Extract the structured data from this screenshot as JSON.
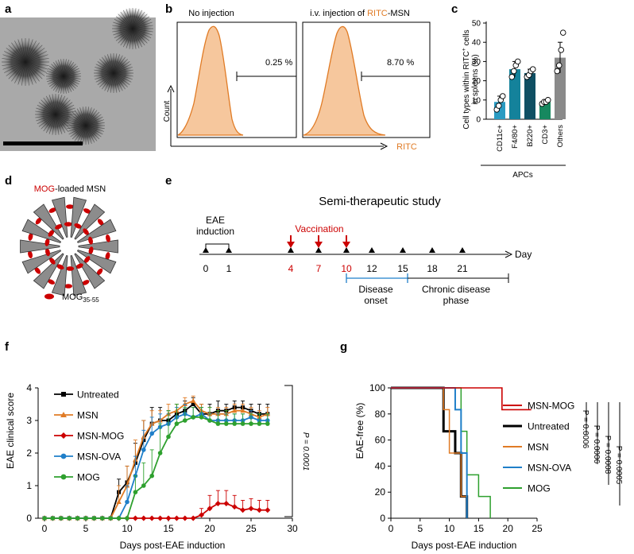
{
  "figure": {
    "panel_letters": [
      "a",
      "b",
      "c",
      "d",
      "e",
      "f",
      "g"
    ],
    "colors": {
      "black": "#000000",
      "red": "#cc0000",
      "orange": "#e07b25",
      "blue": "#1f7fc9",
      "green": "#2ea02e",
      "fill_orange": "#f6c79d",
      "cd11c": "#2a9bc2",
      "f480": "#14829b",
      "b220": "#0f4f63",
      "cd3": "#17885f",
      "others": "#8a8a8a",
      "grey_rod": "#8c8c8c"
    }
  },
  "panel_b": {
    "left_title": "No injection",
    "right_title_pre": "i.v. injection of ",
    "right_title_highlight": "RITC",
    "right_title_post": "-MSN",
    "left_pct": "0.25 %",
    "right_pct": "8.70 %",
    "ylabel": "Count",
    "xlabel": "RITC"
  },
  "panel_d": {
    "title_highlight": "MOG",
    "title_rest": "-loaded MSN",
    "legend_main": "MOG",
    "legend_sub": "35-55"
  },
  "panel_e": {
    "title": "Semi-therapeutic study",
    "induction_line1": "EAE",
    "induction_line2": "induction",
    "vaccination": "Vaccination",
    "day_label": "Day",
    "days": [
      {
        "label": "0",
        "red": false
      },
      {
        "label": "1",
        "red": false
      },
      {
        "label": "4",
        "red": true
      },
      {
        "label": "7",
        "red": true
      },
      {
        "label": "10",
        "red": true
      },
      {
        "label": "12",
        "red": false
      },
      {
        "label": "15",
        "red": false
      },
      {
        "label": "18",
        "red": false
      },
      {
        "label": "21",
        "red": false
      }
    ],
    "onset_line1": "Disease",
    "onset_line2": "onset",
    "chronic_line1": "Chronic disease",
    "chronic_line2": "phase"
  },
  "chart_data": [
    {
      "id": "c",
      "type": "bar",
      "ylabel": "Cell types within RITC+ cells in spleens (%)",
      "ylabel_line1_pre": "Cell types within RITC",
      "ylabel_line1_sup": "+",
      "ylabel_line1_post": " cells",
      "ylabel_line2": "in spleens (%)",
      "ylim": [
        0,
        50
      ],
      "yticks": [
        0,
        10,
        20,
        30,
        40,
        50
      ],
      "categories": [
        "CD11c+",
        "F4/80+",
        "B220+",
        "CD3+",
        "Others"
      ],
      "values": [
        9,
        26,
        24,
        9,
        32
      ],
      "errors": [
        3,
        4,
        2,
        1,
        8
      ],
      "points": [
        [
          5,
          7,
          10,
          12
        ],
        [
          22,
          25,
          28,
          30
        ],
        [
          22,
          23,
          25,
          26
        ],
        [
          8,
          9,
          9,
          10
        ],
        [
          25,
          28,
          36,
          45
        ]
      ],
      "group_label": "APCs"
    },
    {
      "id": "f",
      "type": "line",
      "xlabel": "Days post-EAE induction",
      "ylabel": "EAE clinical score",
      "xlim": [
        0,
        30
      ],
      "ylim": [
        0,
        4
      ],
      "xticks": [
        0,
        5,
        10,
        15,
        20,
        25,
        30
      ],
      "yticks": [
        0,
        1,
        2,
        3,
        4
      ],
      "pvalue": "P = 0.0001",
      "x": [
        0,
        1,
        2,
        3,
        4,
        5,
        6,
        7,
        8,
        9,
        10,
        11,
        12,
        13,
        14,
        15,
        16,
        17,
        18,
        19,
        20,
        21,
        22,
        23,
        24,
        25,
        26,
        27
      ],
      "series": [
        {
          "name": "Untreated",
          "color": "#000000",
          "marker": "square",
          "values": [
            0,
            0,
            0,
            0,
            0,
            0,
            0,
            0,
            0,
            0.8,
            1.1,
            1.7,
            2.4,
            2.9,
            3.0,
            3.0,
            3.2,
            3.3,
            3.5,
            3.2,
            3.2,
            3.3,
            3.3,
            3.4,
            3.4,
            3.3,
            3.2,
            3.2
          ],
          "errors": [
            0,
            0,
            0,
            0,
            0,
            0,
            0,
            0,
            0,
            0.4,
            0.5,
            0.6,
            0.6,
            0.5,
            0.4,
            0.3,
            0.3,
            0.3,
            0.2,
            0.3,
            0.3,
            0.3,
            0.2,
            0.2,
            0.2,
            0.2,
            0.3,
            0.3
          ]
        },
        {
          "name": "MSN",
          "color": "#e07b25",
          "marker": "triangle",
          "values": [
            0,
            0,
            0,
            0,
            0,
            0,
            0,
            0,
            0,
            0.5,
            1.0,
            1.8,
            2.5,
            2.9,
            3.0,
            3.2,
            3.3,
            3.5,
            3.6,
            3.3,
            3.2,
            3.2,
            3.2,
            3.3,
            3.3,
            3.2,
            3.1,
            3.2
          ],
          "errors": [
            0,
            0,
            0,
            0,
            0,
            0,
            0,
            0,
            0,
            0.5,
            0.6,
            0.6,
            0.5,
            0.4,
            0.3,
            0.3,
            0.2,
            0.2,
            0.15,
            0.2,
            0.2,
            0.2,
            0.2,
            0.2,
            0.2,
            0.2,
            0.2,
            0.2
          ]
        },
        {
          "name": "MSN-MOG",
          "color": "#cc0000",
          "marker": "diamond",
          "values": [
            0,
            0,
            0,
            0,
            0,
            0,
            0,
            0,
            0,
            0,
            0,
            0,
            0,
            0,
            0,
            0,
            0,
            0,
            0,
            0.1,
            0.3,
            0.45,
            0.45,
            0.35,
            0.25,
            0.3,
            0.25,
            0.25
          ],
          "errors": [
            0,
            0,
            0,
            0,
            0,
            0,
            0,
            0,
            0,
            0,
            0,
            0,
            0,
            0,
            0,
            0,
            0,
            0,
            0,
            0.2,
            0.4,
            0.4,
            0.4,
            0.35,
            0.3,
            0.3,
            0.3,
            0.3
          ]
        },
        {
          "name": "MSN-OVA",
          "color": "#1f7fc9",
          "marker": "circle",
          "values": [
            0,
            0,
            0,
            0,
            0,
            0,
            0,
            0,
            0,
            0,
            0.5,
            1.3,
            2.1,
            2.6,
            2.8,
            2.9,
            3.1,
            3.2,
            3.1,
            3.2,
            3.0,
            3.0,
            3.0,
            3.0,
            3.0,
            3.1,
            3.0,
            3.0
          ],
          "errors": [
            0,
            0,
            0,
            0,
            0,
            0,
            0,
            0,
            0,
            0,
            0.5,
            0.6,
            0.6,
            0.5,
            0.4,
            0.3,
            0.3,
            0.3,
            0.3,
            0.2,
            0.2,
            0.2,
            0.2,
            0.2,
            0.2,
            0.2,
            0.2,
            0.2
          ]
        },
        {
          "name": "MOG",
          "color": "#2ea02e",
          "marker": "circle",
          "values": [
            0,
            0,
            0,
            0,
            0,
            0,
            0,
            0,
            0,
            0,
            0,
            0.8,
            1.0,
            1.3,
            2.0,
            2.5,
            2.9,
            3.0,
            3.1,
            3.1,
            3.0,
            2.9,
            2.9,
            2.9,
            2.9,
            2.9,
            2.9,
            2.9
          ],
          "errors": [
            0,
            0,
            0,
            0,
            0,
            0,
            0,
            0,
            0,
            0,
            0,
            0.5,
            0.7,
            0.8,
            0.9,
            0.8,
            0.6,
            0.4,
            0.3,
            0.3,
            0.4,
            0.4,
            0.4,
            0.3,
            0.3,
            0.3,
            0.3,
            0.3
          ]
        }
      ]
    },
    {
      "id": "g",
      "type": "line",
      "subtype": "survival-step",
      "xlabel": "Days post-EAE induction",
      "ylabel": "EAE-free (%)",
      "xlim": [
        0,
        25
      ],
      "ylim": [
        0,
        100
      ],
      "xticks": [
        0,
        5,
        10,
        15,
        20,
        25
      ],
      "yticks": [
        0,
        20,
        40,
        60,
        80,
        100
      ],
      "series": [
        {
          "name": "MSN-MOG",
          "color": "#cc0000",
          "steps": [
            [
              0,
              100
            ],
            [
              19,
              100
            ],
            [
              19,
              83.3
            ],
            [
              24,
              83.3
            ]
          ]
        },
        {
          "name": "Untreated",
          "color": "#000000",
          "steps": [
            [
              0,
              100
            ],
            [
              9,
              100
            ],
            [
              9,
              66.7
            ],
            [
              11,
              66.7
            ],
            [
              11,
              50
            ],
            [
              12,
              50
            ],
            [
              12,
              16.7
            ],
            [
              13,
              16.7
            ],
            [
              13,
              0
            ]
          ]
        },
        {
          "name": "MSN",
          "color": "#e07b25",
          "steps": [
            [
              0,
              100
            ],
            [
              9,
              100
            ],
            [
              9,
              83.3
            ],
            [
              10,
              83.3
            ],
            [
              10,
              50
            ],
            [
              12,
              50
            ],
            [
              12,
              16.7
            ],
            [
              13,
              16.7
            ],
            [
              13,
              0
            ]
          ]
        },
        {
          "name": "MSN-OVA",
          "color": "#1f7fc9",
          "steps": [
            [
              0,
              100
            ],
            [
              11,
              100
            ],
            [
              11,
              83.3
            ],
            [
              12,
              83.3
            ],
            [
              12,
              50
            ],
            [
              13,
              50
            ],
            [
              13,
              0
            ]
          ]
        },
        {
          "name": "MOG",
          "color": "#2ea02e",
          "steps": [
            [
              0,
              100
            ],
            [
              12,
              100
            ],
            [
              12,
              66.7
            ],
            [
              13,
              66.7
            ],
            [
              13,
              33.3
            ],
            [
              15,
              33.3
            ],
            [
              15,
              16.7
            ],
            [
              17,
              16.7
            ],
            [
              17,
              0
            ]
          ]
        }
      ],
      "pvalues": [
        "P = 0.0006",
        "P = 0.0006",
        "P = 0.0008",
        "P = 0.0005"
      ]
    }
  ]
}
